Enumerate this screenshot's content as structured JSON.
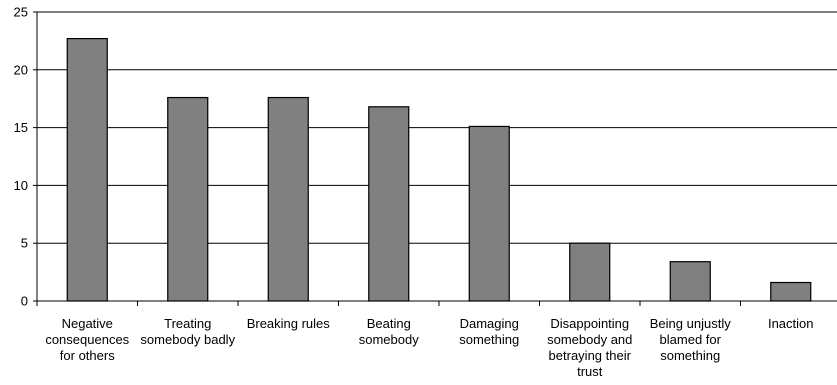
{
  "chart_data": {
    "type": "bar",
    "categories": [
      [
        "Negative",
        "consequences",
        "for others"
      ],
      [
        "Treating",
        "somebody badly"
      ],
      [
        "Breaking rules"
      ],
      [
        "Beating",
        "somebody"
      ],
      [
        "Damaging",
        "something"
      ],
      [
        "Disappointing",
        "somebody and",
        "betraying their",
        "trust"
      ],
      [
        "Being unjustly",
        "blamed for",
        "something"
      ],
      [
        "Inaction"
      ]
    ],
    "values": [
      22.7,
      17.6,
      17.6,
      16.8,
      15.1,
      5.0,
      3.4,
      1.6
    ],
    "ylim": [
      0,
      25
    ],
    "yticks": [
      0,
      5,
      10,
      15,
      20,
      25
    ],
    "grid": true,
    "bar_color": "#808080",
    "bar_edge_color": "#000000",
    "title": "",
    "xlabel": "",
    "ylabel": ""
  }
}
